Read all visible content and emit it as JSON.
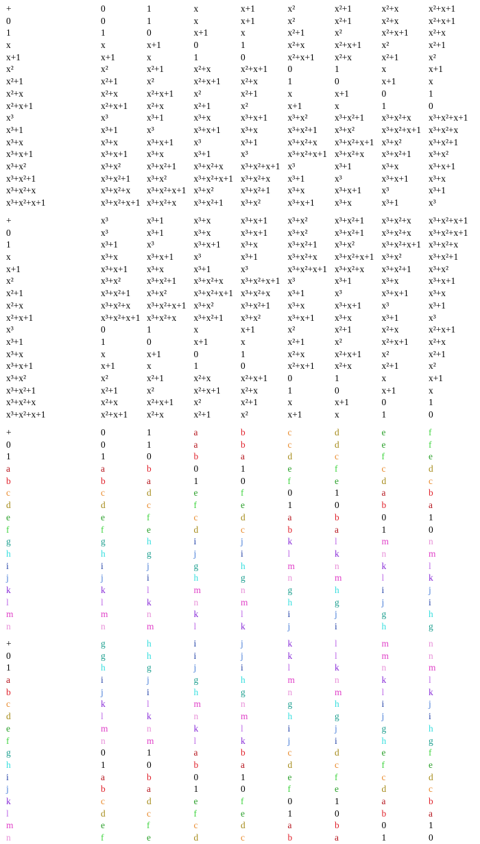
{
  "tables": [
    {
      "rows": [
        [
          "+",
          "0",
          "1",
          "x",
          "x+1",
          "x²",
          "x²+1",
          "x²+x",
          "x²+x+1"
        ],
        [
          "0",
          "0",
          "1",
          "x",
          "x+1",
          "x²",
          "x²+1",
          "x²+x",
          "x²+x+1"
        ],
        [
          "1",
          "1",
          "0",
          "x+1",
          "x",
          "x²+1",
          "x²",
          "x²+x+1",
          "x²+x"
        ],
        [
          "x",
          "x",
          "x+1",
          "0",
          "1",
          "x²+x",
          "x²+x+1",
          "x²",
          "x²+1"
        ],
        [
          "x+1",
          "x+1",
          "x",
          "1",
          "0",
          "x²+x+1",
          "x²+x",
          "x²+1",
          "x²"
        ],
        [
          "x²",
          "x²",
          "x²+1",
          "x²+x",
          "x²+x+1",
          "0",
          "1",
          "x",
          "x+1"
        ],
        [
          "x²+1",
          "x²+1",
          "x²",
          "x²+x+1",
          "x²+x",
          "1",
          "0",
          "x+1",
          "x"
        ],
        [
          "x²+x",
          "x²+x",
          "x²+x+1",
          "x²",
          "x²+1",
          "x",
          "x+1",
          "0",
          "1"
        ],
        [
          "x²+x+1",
          "x²+x+1",
          "x²+x",
          "x²+1",
          "x²",
          "x+1",
          "x",
          "1",
          "0"
        ],
        [
          "x³",
          "x³",
          "x³+1",
          "x³+x",
          "x³+x+1",
          "x³+x²",
          "x³+x²+1",
          "x³+x²+x",
          "x³+x²+x+1"
        ],
        [
          "x³+1",
          "x³+1",
          "x³",
          "x³+x+1",
          "x³+x",
          "x³+x²+1",
          "x³+x²",
          "x³+x²+x+1",
          "x³+x²+x"
        ],
        [
          "x³+x",
          "x³+x",
          "x³+x+1",
          "x³",
          "x³+1",
          "x³+x²+x",
          "x³+x²+x+1",
          "x³+x²",
          "x³+x²+1"
        ],
        [
          "x³+x+1",
          "x³+x+1",
          "x³+x",
          "x³+1",
          "x³",
          "x³+x²+x+1",
          "x³+x²+x",
          "x³+x²+1",
          "x³+x²"
        ],
        [
          "x³+x²",
          "x³+x²",
          "x³+x²+1",
          "x³+x²+x",
          "x³+x²+x+1",
          "x³",
          "x³+1",
          "x³+x",
          "x³+x+1"
        ],
        [
          "x³+x²+1",
          "x³+x²+1",
          "x³+x²",
          "x³+x²+x+1",
          "x³+x²+x",
          "x³+1",
          "x³",
          "x³+x+1",
          "x³+x"
        ],
        [
          "x³+x²+x",
          "x³+x²+x",
          "x³+x²+x+1",
          "x³+x²",
          "x³+x²+1",
          "x³+x",
          "x³+x+1",
          "x³",
          "x³+1"
        ],
        [
          "x³+x²+x+1",
          "x³+x²+x+1",
          "x³+x²+x",
          "x³+x²+1",
          "x³+x²",
          "x³+x+1",
          "x³+x",
          "x³+1",
          "x³"
        ]
      ]
    },
    {
      "rows": [
        [
          "+",
          "x³",
          "x³+1",
          "x³+x",
          "x³+x+1",
          "x³+x²",
          "x³+x²+1",
          "x³+x²+x",
          "x³+x²+x+1"
        ],
        [
          "0",
          "x³",
          "x³+1",
          "x³+x",
          "x³+x+1",
          "x³+x²",
          "x³+x²+1",
          "x³+x²+x",
          "x³+x²+x+1"
        ],
        [
          "1",
          "x³+1",
          "x³",
          "x³+x+1",
          "x³+x",
          "x³+x²+1",
          "x³+x²",
          "x³+x²+x+1",
          "x³+x²+x"
        ],
        [
          "x",
          "x³+x",
          "x³+x+1",
          "x³",
          "x³+1",
          "x³+x²+x",
          "x³+x²+x+1",
          "x³+x²",
          "x³+x²+1"
        ],
        [
          "x+1",
          "x³+x+1",
          "x³+x",
          "x³+1",
          "x³",
          "x³+x²+x+1",
          "x³+x²+x",
          "x³+x²+1",
          "x³+x²"
        ],
        [
          "x²",
          "x³+x²",
          "x³+x²+1",
          "x³+x²+x",
          "x³+x²+x+1",
          "x³",
          "x³+1",
          "x³+x",
          "x³+x+1"
        ],
        [
          "x²+1",
          "x³+x²+1",
          "x³+x²",
          "x³+x²+x+1",
          "x³+x²+x",
          "x³+1",
          "x³",
          "x³+x+1",
          "x³+x"
        ],
        [
          "x²+x",
          "x³+x²+x",
          "x³+x²+x+1",
          "x³+x²",
          "x³+x²+1",
          "x³+x",
          "x³+x+1",
          "x³",
          "x³+1"
        ],
        [
          "x²+x+1",
          "x³+x²+x+1",
          "x³+x²+x",
          "x³+x²+1",
          "x³+x²",
          "x³+x+1",
          "x³+x",
          "x³+1",
          "x³"
        ],
        [
          "x³",
          "0",
          "1",
          "x",
          "x+1",
          "x²",
          "x²+1",
          "x²+x",
          "x²+x+1"
        ],
        [
          "x³+1",
          "1",
          "0",
          "x+1",
          "x",
          "x²+1",
          "x²",
          "x²+x+1",
          "x²+x"
        ],
        [
          "x³+x",
          "x",
          "x+1",
          "0",
          "1",
          "x²+x",
          "x²+x+1",
          "x²",
          "x²+1"
        ],
        [
          "x³+x+1",
          "x+1",
          "x",
          "1",
          "0",
          "x²+x+1",
          "x²+x",
          "x²+1",
          "x²"
        ],
        [
          "x³+x²",
          "x²",
          "x²+1",
          "x²+x",
          "x²+x+1",
          "0",
          "1",
          "x",
          "x+1"
        ],
        [
          "x³+x²+1",
          "x²+1",
          "x²",
          "x²+x+1",
          "x²+x",
          "1",
          "0",
          "x+1",
          "x"
        ],
        [
          "x³+x²+x",
          "x²+x",
          "x²+x+1",
          "x²",
          "x²+1",
          "x",
          "x+1",
          "0",
          "1"
        ],
        [
          "x³+x²+x+1",
          "x²+x+1",
          "x²+x",
          "x²+1",
          "x²",
          "x+1",
          "x",
          "1",
          "0"
        ]
      ]
    },
    {
      "rows": [
        [
          "+",
          "0",
          "1",
          "a",
          "b",
          "c",
          "d",
          "e",
          "f"
        ],
        [
          "0",
          "0",
          "1",
          "a",
          "b",
          "c",
          "d",
          "e",
          "f"
        ],
        [
          "1",
          "1",
          "0",
          "b",
          "a",
          "d",
          "c",
          "f",
          "e"
        ],
        [
          "a",
          "a",
          "b",
          "0",
          "1",
          "e",
          "f",
          "c",
          "d"
        ],
        [
          "b",
          "b",
          "a",
          "1",
          "0",
          "f",
          "e",
          "d",
          "c"
        ],
        [
          "c",
          "c",
          "d",
          "e",
          "f",
          "0",
          "1",
          "a",
          "b"
        ],
        [
          "d",
          "d",
          "c",
          "f",
          "e",
          "1",
          "0",
          "b",
          "a"
        ],
        [
          "e",
          "e",
          "f",
          "c",
          "d",
          "a",
          "b",
          "0",
          "1"
        ],
        [
          "f",
          "f",
          "e",
          "d",
          "c",
          "b",
          "a",
          "1",
          "0"
        ],
        [
          "g",
          "g",
          "h",
          "i",
          "j",
          "k",
          "l",
          "m",
          "n"
        ],
        [
          "h",
          "h",
          "g",
          "j",
          "i",
          "l",
          "k",
          "n",
          "m"
        ],
        [
          "i",
          "i",
          "j",
          "g",
          "h",
          "m",
          "n",
          "k",
          "l"
        ],
        [
          "j",
          "j",
          "i",
          "h",
          "g",
          "n",
          "m",
          "l",
          "k"
        ],
        [
          "k",
          "k",
          "l",
          "m",
          "n",
          "g",
          "h",
          "i",
          "j"
        ],
        [
          "l",
          "l",
          "k",
          "n",
          "m",
          "h",
          "g",
          "j",
          "i"
        ],
        [
          "m",
          "m",
          "n",
          "k",
          "l",
          "i",
          "j",
          "g",
          "h"
        ],
        [
          "n",
          "n",
          "m",
          "l",
          "k",
          "j",
          "i",
          "h",
          "g"
        ]
      ]
    },
    {
      "rows": [
        [
          "+",
          "g",
          "h",
          "i",
          "j",
          "k",
          "l",
          "m",
          "n"
        ],
        [
          "0",
          "g",
          "h",
          "i",
          "j",
          "k",
          "l",
          "m",
          "n"
        ],
        [
          "1",
          "h",
          "g",
          "j",
          "i",
          "l",
          "k",
          "n",
          "m"
        ],
        [
          "a",
          "i",
          "j",
          "g",
          "h",
          "m",
          "n",
          "k",
          "l"
        ],
        [
          "b",
          "j",
          "i",
          "h",
          "g",
          "n",
          "m",
          "l",
          "k"
        ],
        [
          "c",
          "k",
          "l",
          "m",
          "n",
          "g",
          "h",
          "i",
          "j"
        ],
        [
          "d",
          "l",
          "k",
          "n",
          "m",
          "h",
          "g",
          "j",
          "i"
        ],
        [
          "e",
          "m",
          "n",
          "k",
          "l",
          "i",
          "j",
          "g",
          "h"
        ],
        [
          "f",
          "n",
          "m",
          "l",
          "k",
          "j",
          "i",
          "h",
          "g"
        ],
        [
          "g",
          "0",
          "1",
          "a",
          "b",
          "c",
          "d",
          "e",
          "f"
        ],
        [
          "h",
          "1",
          "0",
          "b",
          "a",
          "d",
          "c",
          "f",
          "e"
        ],
        [
          "i",
          "a",
          "b",
          "0",
          "1",
          "e",
          "f",
          "c",
          "d"
        ],
        [
          "j",
          "b",
          "a",
          "1",
          "0",
          "f",
          "e",
          "d",
          "c"
        ],
        [
          "k",
          "c",
          "d",
          "e",
          "f",
          "0",
          "1",
          "a",
          "b"
        ],
        [
          "l",
          "d",
          "c",
          "f",
          "e",
          "1",
          "0",
          "b",
          "a"
        ],
        [
          "m",
          "e",
          "f",
          "c",
          "d",
          "a",
          "b",
          "0",
          "1"
        ],
        [
          "n",
          "f",
          "e",
          "d",
          "c",
          "b",
          "a",
          "1",
          "0"
        ]
      ]
    }
  ],
  "symbol_colors": {
    "+": "#000000",
    "0": "#000000",
    "1": "#000000",
    "a": "#b5151d",
    "b": "#e0202a",
    "c": "#e8892a",
    "d": "#a58a18",
    "e": "#2aa02a",
    "f": "#3fd43f",
    "g": "#1a9e8e",
    "h": "#33dede",
    "i": "#2544a8",
    "j": "#4a7fd8",
    "k": "#8a2ed8",
    "l": "#c070e8",
    "m": "#e040c8",
    "n": "#e890d8"
  }
}
